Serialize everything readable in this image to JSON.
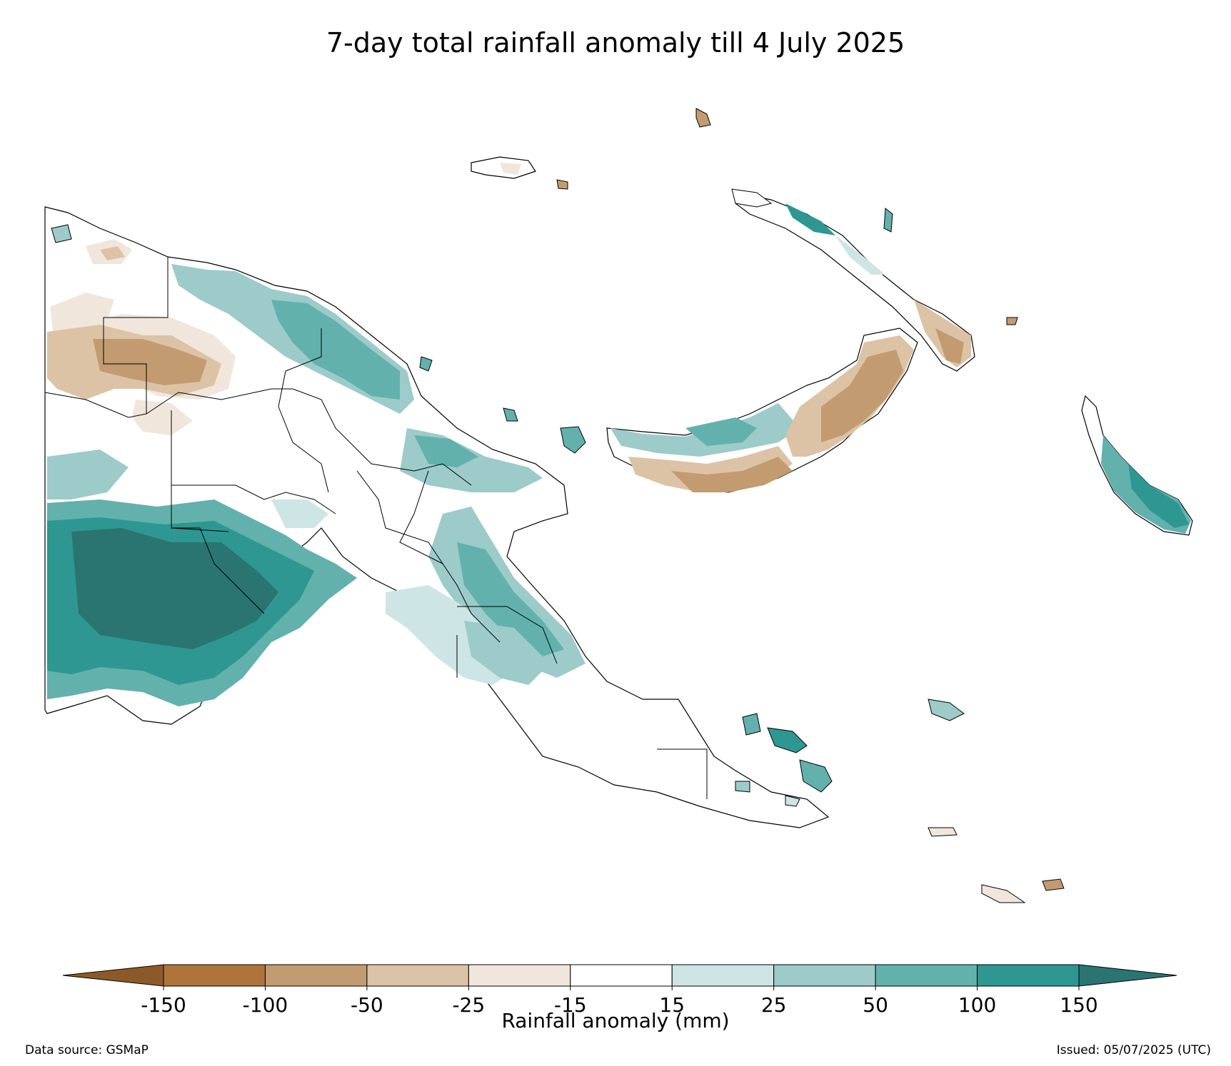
{
  "title": "7-day total rainfall anomaly till 4 July 2025",
  "colorbar": {
    "label": "Rainfall anomaly (mm)",
    "ticks": [
      "-150",
      "-100",
      "-50",
      "-25",
      "-15",
      "15",
      "25",
      "50",
      "100",
      "150"
    ],
    "colors": {
      "under": "#8c5a28",
      "bins": [
        "#ae743c",
        "#c39b70",
        "#dcc3a6",
        "#f1e6dc",
        "#ffffff",
        "#cde5e4",
        "#9ccbc9",
        "#62b1ad",
        "#2e9791"
      ],
      "over": "#2a7571"
    }
  },
  "footer": {
    "source": "Data source: GSMaP",
    "issued": "Issued: 05/07/2025 (UTC)"
  }
}
